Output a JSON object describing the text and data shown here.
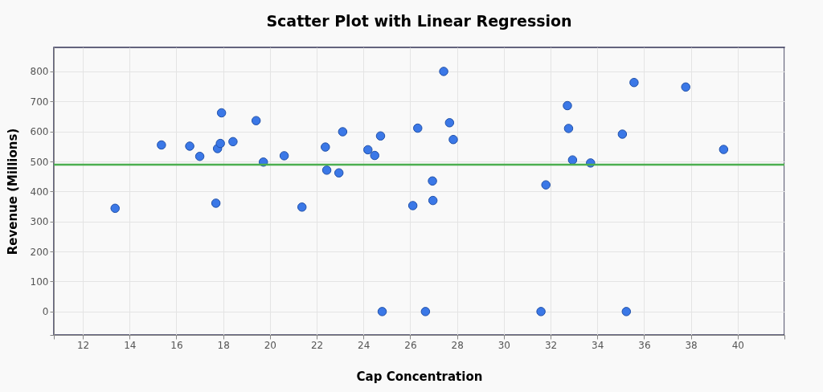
{
  "chart_data": {
    "type": "scatter",
    "title": "Scatter Plot with Linear Regression",
    "xlabel": "Cap Concentration",
    "ylabel": "Revenue (Millions)",
    "xlim": [
      10.76,
      42.0
    ],
    "ylim": [
      -78,
      880
    ],
    "xticks": [
      {
        "value": 10.76,
        "label": null
      },
      12,
      14,
      16,
      18,
      20,
      22,
      24,
      26,
      28,
      30,
      32,
      34,
      36,
      38,
      40,
      {
        "value": 42.0,
        "label": null
      }
    ],
    "yticks": [
      {
        "value": -78,
        "label": null
      },
      0,
      100,
      200,
      300,
      400,
      500,
      600,
      700,
      800
    ],
    "grid": true,
    "legend": false,
    "series": [
      {
        "type": "scatter",
        "marker": "circle",
        "color": "#3b78e7",
        "x": [
          13.38,
          15.36,
          16.57,
          17.0,
          17.76,
          17.88,
          17.93,
          17.69,
          18.42,
          19.41,
          19.72,
          20.61,
          21.37,
          22.37,
          22.43,
          22.95,
          23.11,
          24.19,
          24.48,
          24.73,
          24.8,
          26.32,
          26.11,
          26.95,
          26.97,
          26.65,
          27.43,
          27.68,
          27.84,
          31.8,
          31.59,
          32.72,
          32.77,
          32.94,
          33.71,
          35.07,
          35.57,
          35.24,
          37.78,
          39.4
        ],
        "values": [
          344,
          555,
          551,
          517,
          543,
          560,
          662,
          361,
          566,
          636,
          498,
          519,
          348,
          548,
          471,
          462,
          599,
          539,
          520,
          585,
          0,
          611,
          353,
          435,
          370,
          0,
          800,
          629,
          573,
          422,
          0,
          686,
          610,
          505,
          495,
          591,
          763,
          0,
          748,
          540
        ]
      },
      {
        "type": "line",
        "marker": "none",
        "line_style": "solid",
        "color": "#4caf50",
        "x": [
          10.76,
          42.0
        ],
        "values": [
          489,
          489
        ]
      }
    ]
  }
}
